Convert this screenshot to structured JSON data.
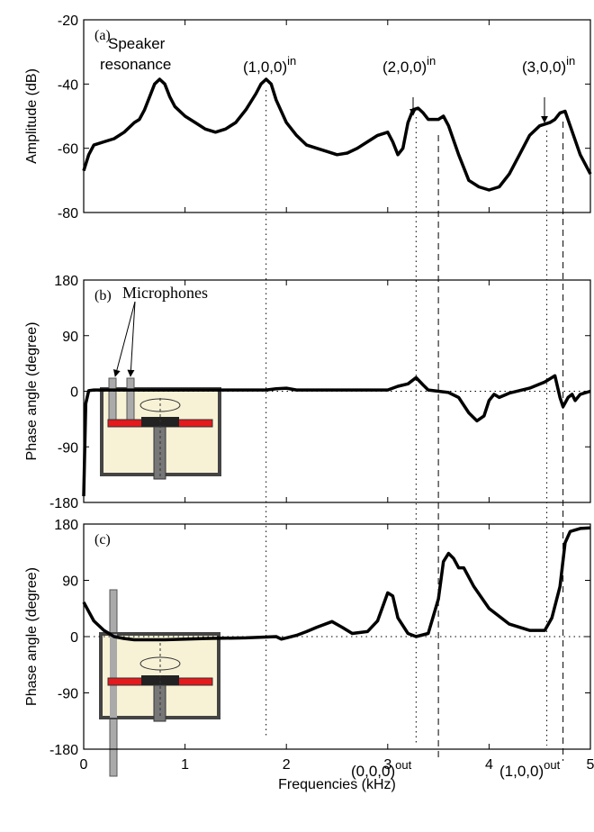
{
  "chart_data": [
    {
      "type": "line",
      "ylabel": "Amplitude (dB)",
      "color": "#000000",
      "xlim": [
        0,
        5
      ],
      "xticks": [
        0,
        1,
        2,
        3,
        4,
        5
      ],
      "ylim": [
        -80,
        -20
      ],
      "yticks": [
        -20,
        -40,
        -60,
        -80
      ],
      "x": [
        0,
        0.05,
        0.1,
        0.2,
        0.3,
        0.4,
        0.5,
        0.55,
        0.6,
        0.65,
        0.7,
        0.75,
        0.8,
        0.85,
        0.9,
        1.0,
        1.1,
        1.2,
        1.3,
        1.4,
        1.5,
        1.6,
        1.7,
        1.75,
        1.8,
        1.85,
        1.9,
        2.0,
        2.1,
        2.2,
        2.3,
        2.4,
        2.5,
        2.6,
        2.7,
        2.8,
        2.9,
        3.0,
        3.05,
        3.1,
        3.15,
        3.2,
        3.25,
        3.3,
        3.35,
        3.4,
        3.5,
        3.55,
        3.6,
        3.7,
        3.8,
        3.9,
        4.0,
        4.1,
        4.2,
        4.3,
        4.4,
        4.5,
        4.6,
        4.65,
        4.7,
        4.75,
        4.8,
        4.9,
        5.0
      ],
      "values": [
        -67,
        -62,
        -59,
        -58,
        -57,
        -55,
        -52,
        -51,
        -48,
        -44,
        -40,
        -38.5,
        -40,
        -44,
        -47,
        -50,
        -52,
        -54,
        -55,
        -54,
        -52,
        -48,
        -43,
        -40,
        -38.5,
        -40,
        -45,
        -52,
        -56,
        -59,
        -60,
        -61,
        -62,
        -61.5,
        -60,
        -58,
        -56,
        -55,
        -58,
        -62,
        -60,
        -52,
        -48,
        -47.5,
        -49,
        -51,
        -51,
        -50,
        -53,
        -62,
        -70,
        -72,
        -73,
        -72,
        -68,
        -62,
        -56,
        -53,
        -52,
        -51,
        -49,
        -48.5,
        -53,
        -62,
        -68
      ],
      "panel_label": "(a)",
      "annotations": [
        {
          "text": "Speaker"
        },
        {
          "text": "resonance"
        },
        {
          "text": "(1,0,0)",
          "sup": "in"
        },
        {
          "text": "(2,0,0)",
          "sup": "in"
        },
        {
          "text": "(3,0,0)",
          "sup": "in"
        }
      ]
    },
    {
      "type": "line",
      "ylabel": "Phase angle (degree)",
      "color": "#000000",
      "xlim": [
        0,
        5
      ],
      "xticks": [
        0,
        1,
        2,
        3,
        4,
        5
      ],
      "ylim": [
        -180,
        180
      ],
      "yticks": [
        180,
        90,
        0,
        -90,
        -180
      ],
      "zero_line": true,
      "x": [
        0,
        0.02,
        0.05,
        0.1,
        0.5,
        1.0,
        1.5,
        1.8,
        1.9,
        2.0,
        2.1,
        2.5,
        3.0,
        3.1,
        3.2,
        3.28,
        3.35,
        3.4,
        3.5,
        3.6,
        3.7,
        3.8,
        3.88,
        3.95,
        4.0,
        4.05,
        4.1,
        4.2,
        4.4,
        4.55,
        4.65,
        4.7,
        4.73,
        4.78,
        4.82,
        4.85,
        4.9,
        5.0
      ],
      "values": [
        -170,
        -20,
        1,
        2,
        2,
        2,
        2,
        2,
        4,
        5,
        2,
        2,
        2,
        8,
        12,
        22,
        10,
        2,
        0,
        -2,
        -10,
        -35,
        -48,
        -40,
        -15,
        -5,
        -10,
        -3,
        5,
        15,
        25,
        -10,
        -25,
        -10,
        -5,
        -15,
        -5,
        0
      ],
      "panel_label": "(b)",
      "inset_label": "Microphones"
    },
    {
      "type": "line",
      "ylabel": "Phase angle (degree)",
      "xlabel": "Frequencies (kHz)",
      "color": "#000000",
      "xlim": [
        0,
        5
      ],
      "xticks": [
        0,
        1,
        2,
        3,
        4,
        5
      ],
      "ylim": [
        -180,
        180
      ],
      "yticks": [
        180,
        90,
        0,
        -90,
        -180
      ],
      "zero_line": true,
      "x": [
        0,
        0.05,
        0.1,
        0.2,
        0.3,
        0.4,
        0.5,
        0.8,
        1.2,
        1.6,
        1.9,
        1.95,
        2.0,
        2.1,
        2.2,
        2.3,
        2.45,
        2.55,
        2.65,
        2.8,
        2.9,
        3.0,
        3.05,
        3.1,
        3.2,
        3.28,
        3.4,
        3.5,
        3.55,
        3.6,
        3.65,
        3.7,
        3.75,
        3.85,
        4.0,
        4.2,
        4.4,
        4.55,
        4.62,
        4.7,
        4.75,
        4.8,
        4.9,
        5.0
      ],
      "values": [
        55,
        40,
        25,
        10,
        0,
        -3,
        -5,
        -5,
        -3,
        -2,
        0,
        -4,
        -2,
        2,
        8,
        15,
        24,
        15,
        5,
        8,
        25,
        70,
        65,
        30,
        5,
        0,
        5,
        60,
        120,
        133,
        125,
        110,
        110,
        80,
        45,
        20,
        10,
        10,
        30,
        80,
        150,
        168,
        173,
        174
      ],
      "panel_label": "(c)",
      "annotations": [
        {
          "text": "(0,0,0)",
          "sup": "out"
        },
        {
          "text": "(1,0,0)",
          "sup": "out"
        }
      ]
    }
  ],
  "reference_lines": [
    {
      "x": 1.8,
      "style": "dotted"
    },
    {
      "x": 3.28,
      "style": "dotted"
    },
    {
      "x": 3.5,
      "style": "dashed"
    },
    {
      "x": 4.57,
      "style": "dotted"
    },
    {
      "x": 4.73,
      "style": "dashed"
    }
  ]
}
